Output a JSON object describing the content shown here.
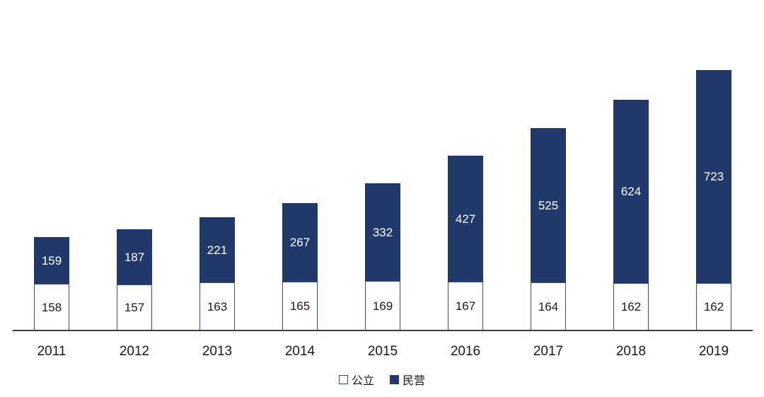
{
  "chart_data": {
    "type": "bar",
    "stacked": true,
    "title": "",
    "xlabel": "",
    "ylabel": "",
    "categories": [
      "2011",
      "2012",
      "2013",
      "2014",
      "2015",
      "2016",
      "2017",
      "2018",
      "2019"
    ],
    "series": [
      {
        "name": "公立",
        "values": [
          158,
          157,
          163,
          165,
          169,
          167,
          164,
          162,
          162
        ],
        "color": "#ffffff",
        "label_color": "#1a1a1a"
      },
      {
        "name": "民营",
        "values": [
          159,
          187,
          221,
          267,
          332,
          427,
          525,
          624,
          723
        ],
        "color": "#21386a",
        "label_color": "#ffffff"
      }
    ],
    "totals": [
      317,
      344,
      384,
      432,
      501,
      594,
      689,
      786,
      885
    ],
    "ylim": [
      0,
      885
    ],
    "grid": false,
    "y_axis_visible": false,
    "legend_position": "bottom",
    "data_labels": "inside-center"
  },
  "legend": {
    "items": [
      {
        "label": "公立",
        "swatch": "outlined"
      },
      {
        "label": "民营",
        "swatch": "filled"
      }
    ]
  },
  "colors": {
    "navy": "#21386a",
    "bar_border": "#35507f",
    "axis": "#3d3d3d",
    "text": "#1a1a1a",
    "background": "#ffffff"
  }
}
